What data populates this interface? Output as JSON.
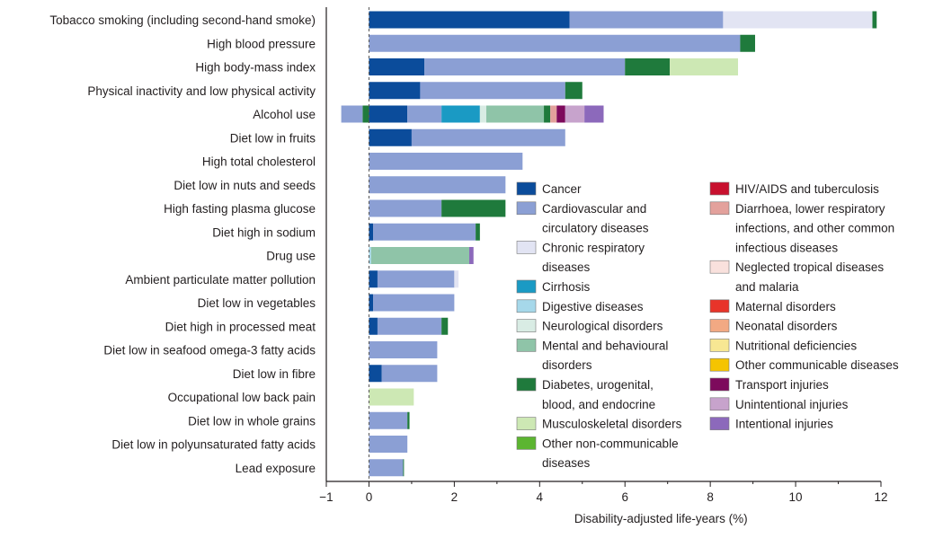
{
  "chart_data": {
    "type": "bar",
    "orientation": "horizontal",
    "stacked": true,
    "xlabel": "Disability-adjusted life-years (%)",
    "ylabel": "",
    "xlim": [
      -1,
      12
    ],
    "xticks": [
      -1,
      0,
      2,
      4,
      6,
      8,
      10,
      12
    ],
    "grid": false,
    "legend_position": "right",
    "categories": [
      "Tobacco smoking (including second-hand smoke)",
      "High blood pressure",
      "High body-mass index",
      "Physical inactivity and low physical activity",
      "Alcohol use",
      "Diet low in fruits",
      "High total cholesterol",
      "Diet low in nuts and seeds",
      "High fasting plasma glucose",
      "Diet high in sodium",
      "Drug use",
      "Ambient particulate matter pollution",
      "Diet low in vegetables",
      "Diet high in processed meat",
      "Diet low in seafood omega-3 fatty acids",
      "Diet low in fibre",
      "Occupational low back pain",
      "Diet low in whole grains",
      "Diet low in polyunsaturated fatty acids",
      "Lead exposure"
    ],
    "series": [
      {
        "name": "Cancer",
        "color": "#0b4c9b",
        "values": [
          4.7,
          0,
          1.3,
          1.2,
          0.9,
          1.0,
          0,
          0,
          0,
          0.1,
          0,
          0.2,
          0.1,
          0.2,
          0,
          0.3,
          0,
          0,
          0,
          0
        ]
      },
      {
        "name": "Cardiovascular and circulatory diseases",
        "color": "#8b9fd4",
        "values": [
          3.6,
          8.7,
          4.7,
          3.4,
          0.8,
          3.6,
          3.6,
          3.2,
          1.7,
          2.4,
          0,
          1.8,
          1.9,
          1.5,
          1.6,
          1.3,
          0,
          0.9,
          0.9,
          0.8
        ]
      },
      {
        "name": "Chronic respiratory diseases",
        "color": "#e2e4f3",
        "values": [
          3.5,
          0,
          0,
          0,
          0,
          0,
          0,
          0,
          0,
          0,
          0,
          0.1,
          0,
          0,
          0,
          0,
          0,
          0,
          0,
          0
        ]
      },
      {
        "name": "Cirrhosis",
        "color": "#1a9ac4",
        "values": [
          0,
          0,
          0,
          0,
          0.9,
          0,
          0,
          0,
          0,
          0,
          0,
          0,
          0,
          0,
          0,
          0,
          0,
          0,
          0,
          0
        ]
      },
      {
        "name": "Digestive diseases",
        "color": "#a6d8ea",
        "values": [
          0,
          0,
          0,
          0,
          0,
          0,
          0,
          0,
          0,
          0,
          0.05,
          0,
          0,
          0,
          0,
          0,
          0,
          0,
          0,
          0
        ]
      },
      {
        "name": "Neurological disorders",
        "color": "#d9ece4",
        "values": [
          0,
          0,
          0,
          0,
          0.15,
          0,
          0,
          0,
          0,
          0,
          0,
          0,
          0,
          0,
          0,
          0,
          0,
          0,
          0,
          0
        ]
      },
      {
        "name": "Mental and behavioural disorders",
        "color": "#8fc4a8",
        "values": [
          0,
          0,
          0,
          0,
          1.35,
          0,
          0,
          0,
          0,
          0,
          2.3,
          0,
          0,
          0,
          0,
          0,
          0,
          0,
          0,
          0
        ]
      },
      {
        "name": "Diabetes, urogenital, blood, and endocrine",
        "color": "#1f7a3c",
        "values": [
          0.1,
          0.35,
          1.05,
          0.4,
          0.15,
          0,
          0,
          0,
          1.5,
          0.1,
          0,
          0,
          0,
          0.15,
          0,
          0,
          0,
          0.05,
          0,
          0.02
        ]
      },
      {
        "name": "Musculoskeletal disorders",
        "color": "#cde8b4",
        "values": [
          0,
          0,
          1.6,
          0,
          0,
          0,
          0,
          0,
          0,
          0,
          0,
          0,
          0,
          0,
          0,
          0,
          1.05,
          0,
          0,
          0
        ]
      },
      {
        "name": "Other non-communicable diseases",
        "color": "#5cb531",
        "values": [
          0,
          0,
          0,
          0,
          0,
          0,
          0,
          0,
          0,
          0,
          0,
          0,
          0,
          0,
          0,
          0,
          0,
          0,
          0,
          0
        ]
      },
      {
        "name": "HIV/AIDS and tuberculosis",
        "color": "#c8102e",
        "values": [
          0,
          0,
          0,
          0,
          0,
          0,
          0,
          0,
          0,
          0,
          0,
          0,
          0,
          0,
          0,
          0,
          0,
          0,
          0,
          0
        ]
      },
      {
        "name": "Diarrhoea, lower respiratory infections, and other common infectious diseases",
        "color": "#e3a19c",
        "values": [
          0,
          0,
          0,
          0,
          0.15,
          0,
          0,
          0,
          0,
          0,
          0,
          0,
          0,
          0,
          0,
          0,
          0,
          0,
          0,
          0
        ]
      },
      {
        "name": "Neglected tropical diseases and malaria",
        "color": "#f9e1dd",
        "values": [
          0,
          0,
          0,
          0,
          0,
          0,
          0,
          0,
          0,
          0,
          0,
          0,
          0,
          0,
          0,
          0,
          0,
          0,
          0,
          0
        ]
      },
      {
        "name": "Maternal disorders",
        "color": "#e8342a",
        "values": [
          0,
          0,
          0,
          0,
          0,
          0,
          0,
          0,
          0,
          0,
          0,
          0,
          0,
          0,
          0,
          0,
          0,
          0,
          0,
          0
        ]
      },
      {
        "name": "Neonatal disorders",
        "color": "#f2a983",
        "values": [
          0,
          0,
          0,
          0,
          0,
          0,
          0,
          0,
          0,
          0,
          0,
          0,
          0,
          0,
          0,
          0,
          0,
          0,
          0,
          0
        ]
      },
      {
        "name": "Nutritional deficiencies",
        "color": "#f7e793",
        "values": [
          0,
          0,
          0,
          0,
          0,
          0,
          0,
          0,
          0,
          0,
          0,
          0,
          0,
          0,
          0,
          0,
          0,
          0,
          0,
          0
        ]
      },
      {
        "name": "Other communicable diseases",
        "color": "#f5c400",
        "values": [
          0,
          0,
          0,
          0,
          0,
          0,
          0,
          0,
          0,
          0,
          0,
          0,
          0,
          0,
          0,
          0,
          0,
          0,
          0,
          0
        ]
      },
      {
        "name": "Transport injuries",
        "color": "#7d0a5c",
        "values": [
          0,
          0,
          0,
          0,
          0.2,
          0,
          0,
          0,
          0,
          0,
          0,
          0,
          0,
          0,
          0,
          0,
          0,
          0,
          0,
          0
        ]
      },
      {
        "name": "Unintentional injuries",
        "color": "#c7a3cc",
        "values": [
          0,
          0,
          0,
          0,
          0.45,
          0,
          0,
          0,
          0,
          0,
          0,
          0,
          0,
          0,
          0,
          0,
          0,
          0,
          0,
          0
        ]
      },
      {
        "name": "Intentional injuries",
        "color": "#8c69bb",
        "values": [
          0,
          0,
          0,
          0,
          0.45,
          0,
          0,
          0,
          0,
          0,
          0.1,
          0,
          0,
          0,
          0,
          0,
          0,
          0,
          0,
          0
        ]
      }
    ],
    "negative_values": [
      {
        "category": "Alcohol use",
        "series": "Diabetes, urogenital, blood, and endocrine",
        "value": -0.15
      },
      {
        "category": "Alcohol use",
        "series": "Cardiovascular and circulatory diseases",
        "value": -0.5
      }
    ],
    "legend": {
      "columns": [
        [
          {
            "series": "Cancer",
            "lines": [
              "Cancer"
            ]
          },
          {
            "series": "Cardiovascular and circulatory diseases",
            "lines": [
              "Cardiovascular and",
              "circulatory diseases"
            ]
          },
          {
            "series": "Chronic respiratory diseases",
            "lines": [
              "Chronic respiratory",
              "diseases"
            ]
          },
          {
            "series": "Cirrhosis",
            "lines": [
              "Cirrhosis"
            ]
          },
          {
            "series": "Digestive diseases",
            "lines": [
              "Digestive diseases"
            ]
          },
          {
            "series": "Neurological disorders",
            "lines": [
              "Neurological disorders"
            ]
          },
          {
            "series": "Mental and behavioural disorders",
            "lines": [
              "Mental and behavioural",
              "disorders"
            ]
          },
          {
            "series": "Diabetes, urogenital, blood, and endocrine",
            "lines": [
              "Diabetes, urogenital,",
              "blood, and endocrine"
            ]
          },
          {
            "series": "Musculoskeletal disorders",
            "lines": [
              "Musculoskeletal disorders"
            ]
          },
          {
            "series": "Other non-communicable diseases",
            "lines": [
              "Other non-communicable",
              "diseases"
            ]
          }
        ],
        [
          {
            "series": "HIV/AIDS and tuberculosis",
            "lines": [
              "HIV/AIDS and tuberculosis"
            ]
          },
          {
            "series": "Diarrhoea, lower respiratory infections, and other common infectious diseases",
            "lines": [
              "Diarrhoea, lower respiratory",
              "infections, and other common",
              "infectious diseases"
            ]
          },
          {
            "series": "Neglected tropical diseases and malaria",
            "lines": [
              "Neglected tropical diseases",
              "and malaria"
            ]
          },
          {
            "series": "Maternal disorders",
            "lines": [
              "Maternal disorders"
            ]
          },
          {
            "series": "Neonatal disorders",
            "lines": [
              "Neonatal disorders"
            ]
          },
          {
            "series": "Nutritional deficiencies",
            "lines": [
              "Nutritional deficiencies"
            ]
          },
          {
            "series": "Other communicable diseases",
            "lines": [
              "Other communicable diseases"
            ]
          },
          {
            "series": "Transport injuries",
            "lines": [
              "Transport injuries"
            ]
          },
          {
            "series": "Unintentional injuries",
            "lines": [
              "Unintentional injuries"
            ]
          },
          {
            "series": "Intentional injuries",
            "lines": [
              "Intentional injuries"
            ]
          }
        ]
      ]
    }
  }
}
